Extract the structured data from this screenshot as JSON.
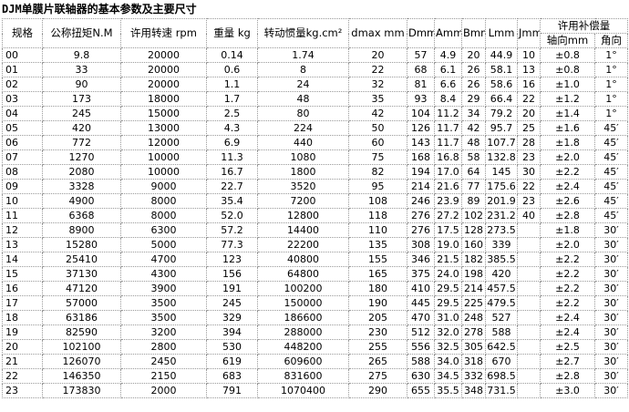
{
  "title": "DJM单膜片联轴器的基本参数及主要尺寸",
  "table": {
    "header": {
      "columns": [
        "规格",
        "公称扭矩N.M",
        "许用转速 rpm",
        "重量 kg",
        "转动惯量kg.cm²",
        "dmax  mm",
        "Dmm",
        "Amm",
        "Bmm",
        "Lmm",
        "Jmm"
      ],
      "group": "许用补偿量",
      "sub": [
        "轴向mm",
        "角向"
      ]
    },
    "rows": [
      [
        "00",
        "9.8",
        "20000",
        "0.14",
        "1.74",
        "20",
        "57",
        "4.9",
        "20",
        "44.9",
        "10",
        "±0.8",
        "1°"
      ],
      [
        "01",
        "33",
        "20000",
        "0.6",
        "8",
        "22",
        "68",
        "6.1",
        "26",
        "58.1",
        "13",
        "±0.8",
        "1°"
      ],
      [
        "02",
        "90",
        "20000",
        "1.1",
        "24",
        "32",
        "81",
        "6.6",
        "26",
        "58.6",
        "16",
        "±1.0",
        "1°"
      ],
      [
        "03",
        "173",
        "18000",
        "1.7",
        "48",
        "35",
        "93",
        "8.4",
        "29",
        "66.4",
        "22",
        "±1.2",
        "1°"
      ],
      [
        "04",
        "245",
        "15000",
        "2.5",
        "80",
        "42",
        "104",
        "11.2",
        "34",
        "79.2",
        "20",
        "±1.4",
        "1°"
      ],
      [
        "05",
        "420",
        "13000",
        "4.3",
        "224",
        "50",
        "126",
        "11.7",
        "42",
        "95.7",
        "25",
        "±1.6",
        "45′"
      ],
      [
        "06",
        "772",
        "12000",
        "6.9",
        "440",
        "60",
        "143",
        "11.7",
        "48",
        "107.7",
        "28",
        "±1.8",
        "45′"
      ],
      [
        "07",
        "1270",
        "10000",
        "11.3",
        "1080",
        "75",
        "168",
        "16.8",
        "58",
        "132.8",
        "23",
        "±2.0",
        "45′"
      ],
      [
        "08",
        "2080",
        "10000",
        "16.7",
        "1800",
        "82",
        "194",
        "17.0",
        "64",
        "145",
        "30",
        "±2.2",
        "45′"
      ],
      [
        "09",
        "3328",
        "9000",
        "22.7",
        "3520",
        "95",
        "214",
        "21.6",
        "77",
        "175.6",
        "22",
        "±2.4",
        "45′"
      ],
      [
        "10",
        "4900",
        "8000",
        "35.4",
        "7200",
        "108",
        "246",
        "23.9",
        "89",
        "201.9",
        "23",
        "±2.6",
        "45′"
      ],
      [
        "11",
        "6368",
        "8000",
        "52.0",
        "12800",
        "118",
        "276",
        "27.2",
        "102",
        "231.2",
        "40",
        "±2.8",
        "45′"
      ],
      [
        "12",
        "8900",
        "6300",
        "57.2",
        "14400",
        "110",
        "276",
        "17.5",
        "128",
        "273.5",
        null,
        "±1.8",
        "30′"
      ],
      [
        "13",
        "15280",
        "5000",
        "77.3",
        "22200",
        "135",
        "308",
        "19.0",
        "160",
        "339",
        null,
        "±2.0",
        "30′"
      ],
      [
        "14",
        "25410",
        "4700",
        "123",
        "40800",
        "155",
        "346",
        "21.5",
        "182",
        "385.5",
        null,
        "±2.2",
        "30′"
      ],
      [
        "15",
        "37130",
        "4300",
        "156",
        "64800",
        "165",
        "375",
        "24.0",
        "198",
        "420",
        null,
        "±2.2",
        "30′"
      ],
      [
        "16",
        "47120",
        "3900",
        "191",
        "100200",
        "180",
        "410",
        "29.5",
        "214",
        "457.5",
        null,
        "±2.2",
        "30′"
      ],
      [
        "17",
        "57000",
        "3500",
        "245",
        "150000",
        "190",
        "445",
        "29.5",
        "225",
        "479.5",
        null,
        "±2.2",
        "30′"
      ],
      [
        "18",
        "63186",
        "3500",
        "329",
        "186600",
        "205",
        "470",
        "31.0",
        "248",
        "527",
        null,
        "±2.4",
        "30′"
      ],
      [
        "19",
        "82590",
        "3200",
        "394",
        "288000",
        "230",
        "512",
        "32.0",
        "278",
        "588",
        null,
        "±2.4",
        "30′"
      ],
      [
        "20",
        "102100",
        "2800",
        "530",
        "448200",
        "255",
        "556",
        "32.5",
        "305",
        "642.5",
        null,
        "±2.5",
        "30′"
      ],
      [
        "21",
        "126070",
        "2450",
        "619",
        "609600",
        "265",
        "588",
        "34.0",
        "318",
        "670",
        null,
        "±2.7",
        "30′"
      ],
      [
        "22",
        "146350",
        "2150",
        "683",
        "831600",
        "275",
        "630",
        "34.5",
        "332",
        "698.5",
        null,
        "±2.8",
        "30′"
      ],
      [
        "23",
        "173830",
        "2000",
        "791",
        "1070400",
        "290",
        "655",
        "35.5",
        "348",
        "731.5",
        null,
        "±3.0",
        "30′"
      ]
    ]
  }
}
